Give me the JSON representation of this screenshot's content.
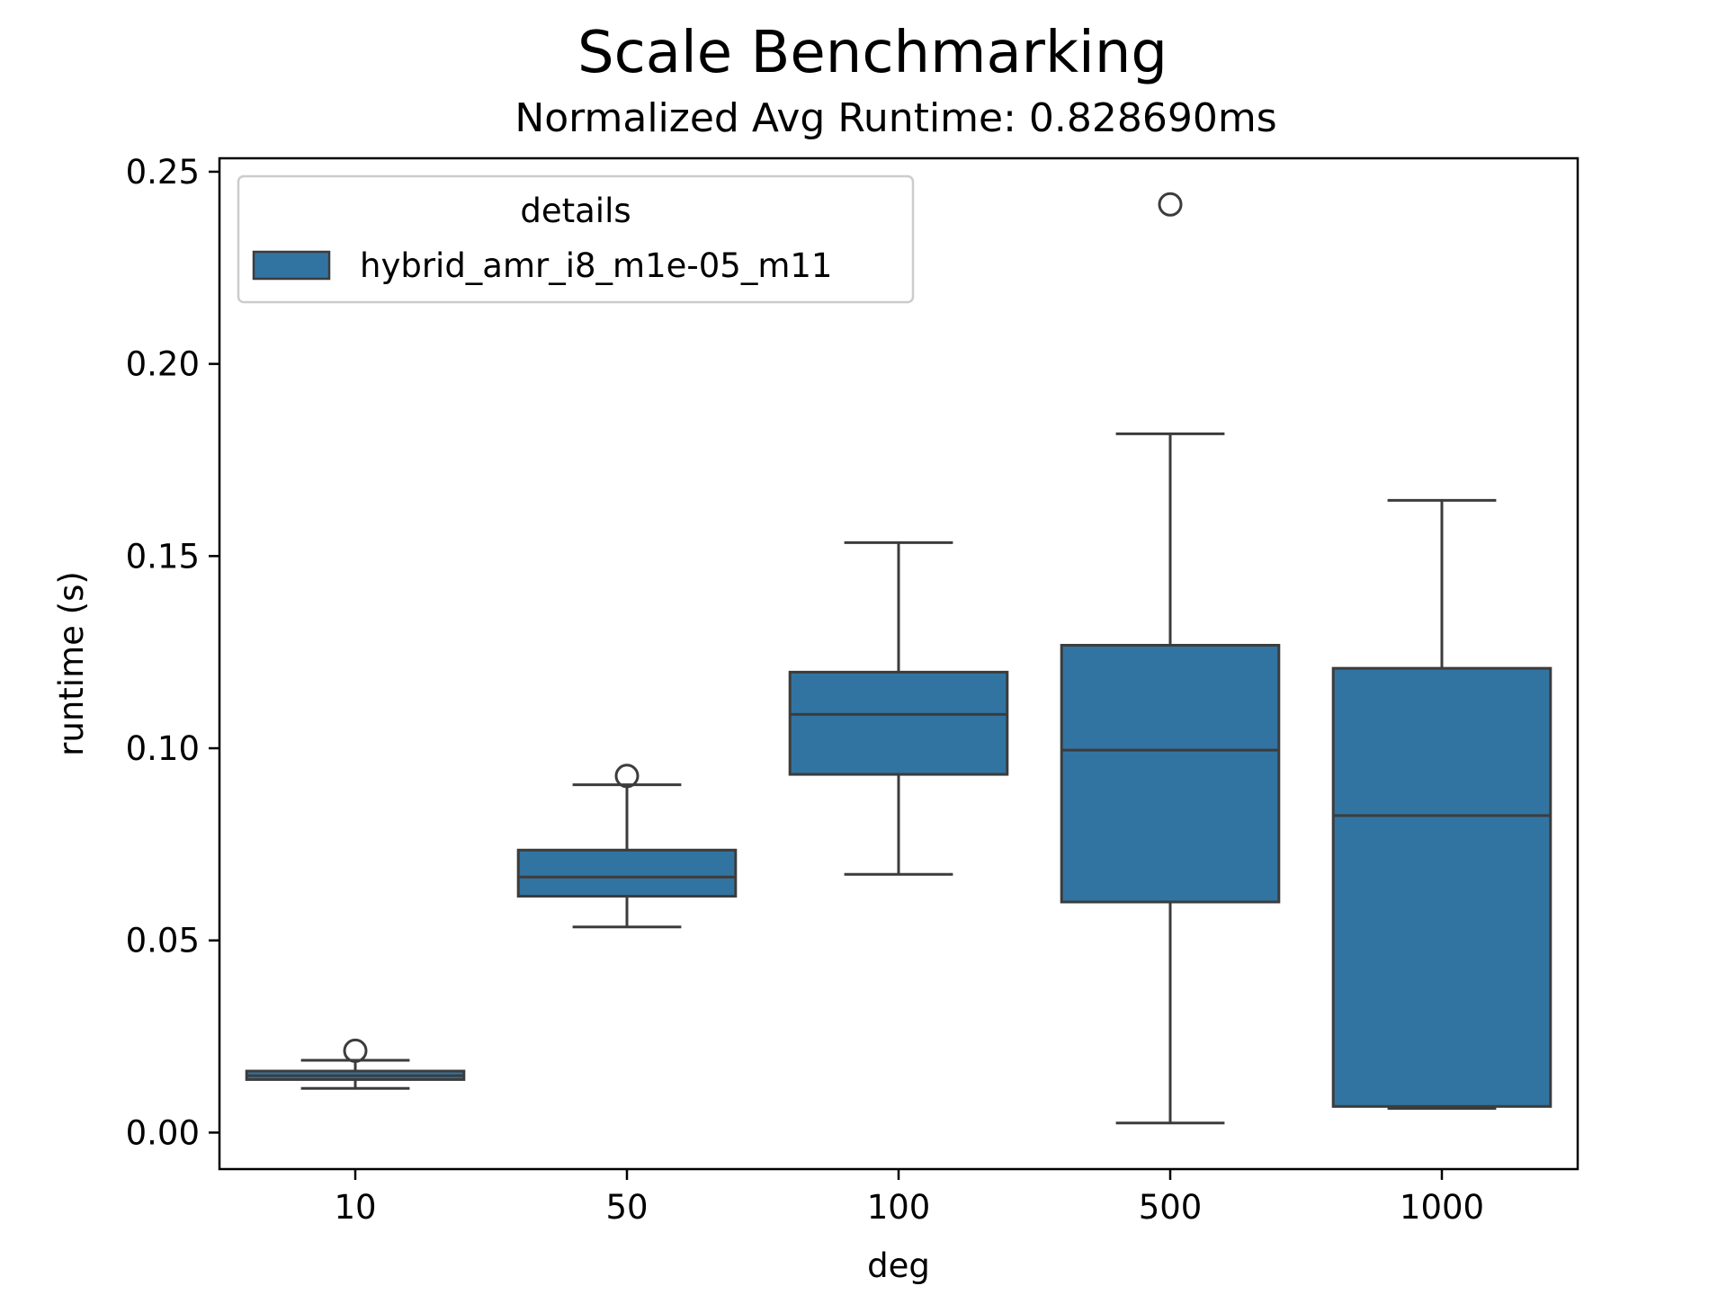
{
  "chart_data": {
    "type": "box",
    "title": "Scale Benchmarking",
    "subtitle": "Normalized Avg Runtime: 0.828690ms",
    "xlabel": "deg",
    "ylabel": "runtime (s)",
    "ylim": [
      -0.0095,
      0.2535
    ],
    "yticks": [
      0.0,
      0.05,
      0.1,
      0.15,
      0.2,
      0.25
    ],
    "ytick_labels": [
      "0.00",
      "0.05",
      "0.10",
      "0.15",
      "0.20",
      "0.25"
    ],
    "categories": [
      "10",
      "50",
      "100",
      "500",
      "1000"
    ],
    "legend": {
      "title": "details",
      "position": "top-left",
      "entries": [
        "hybrid_amr_i8_m1e-05_m11"
      ]
    },
    "series": [
      {
        "name": "hybrid_amr_i8_m1e-05_m11",
        "color": "#3274a1",
        "edge_color": "#3c3c3c",
        "boxes": [
          {
            "category": "10",
            "whisker_low": 0.0115,
            "q1": 0.0138,
            "median": 0.0148,
            "q3": 0.016,
            "whisker_high": 0.0188,
            "outliers": [
              0.0213
            ]
          },
          {
            "category": "50",
            "whisker_low": 0.0535,
            "q1": 0.0615,
            "median": 0.0665,
            "q3": 0.0735,
            "whisker_high": 0.0905,
            "outliers": [
              0.0928
            ]
          },
          {
            "category": "100",
            "whisker_low": 0.0672,
            "q1": 0.0932,
            "median": 0.1088,
            "q3": 0.1198,
            "whisker_high": 0.1535,
            "outliers": []
          },
          {
            "category": "500",
            "whisker_low": 0.0025,
            "q1": 0.06,
            "median": 0.0995,
            "q3": 0.1268,
            "whisker_high": 0.1818,
            "outliers": [
              0.2415
            ]
          },
          {
            "category": "1000",
            "whisker_low": 0.0063,
            "q1": 0.0068,
            "median": 0.0825,
            "q3": 0.1208,
            "whisker_high": 0.1645,
            "outliers": []
          }
        ]
      }
    ]
  }
}
